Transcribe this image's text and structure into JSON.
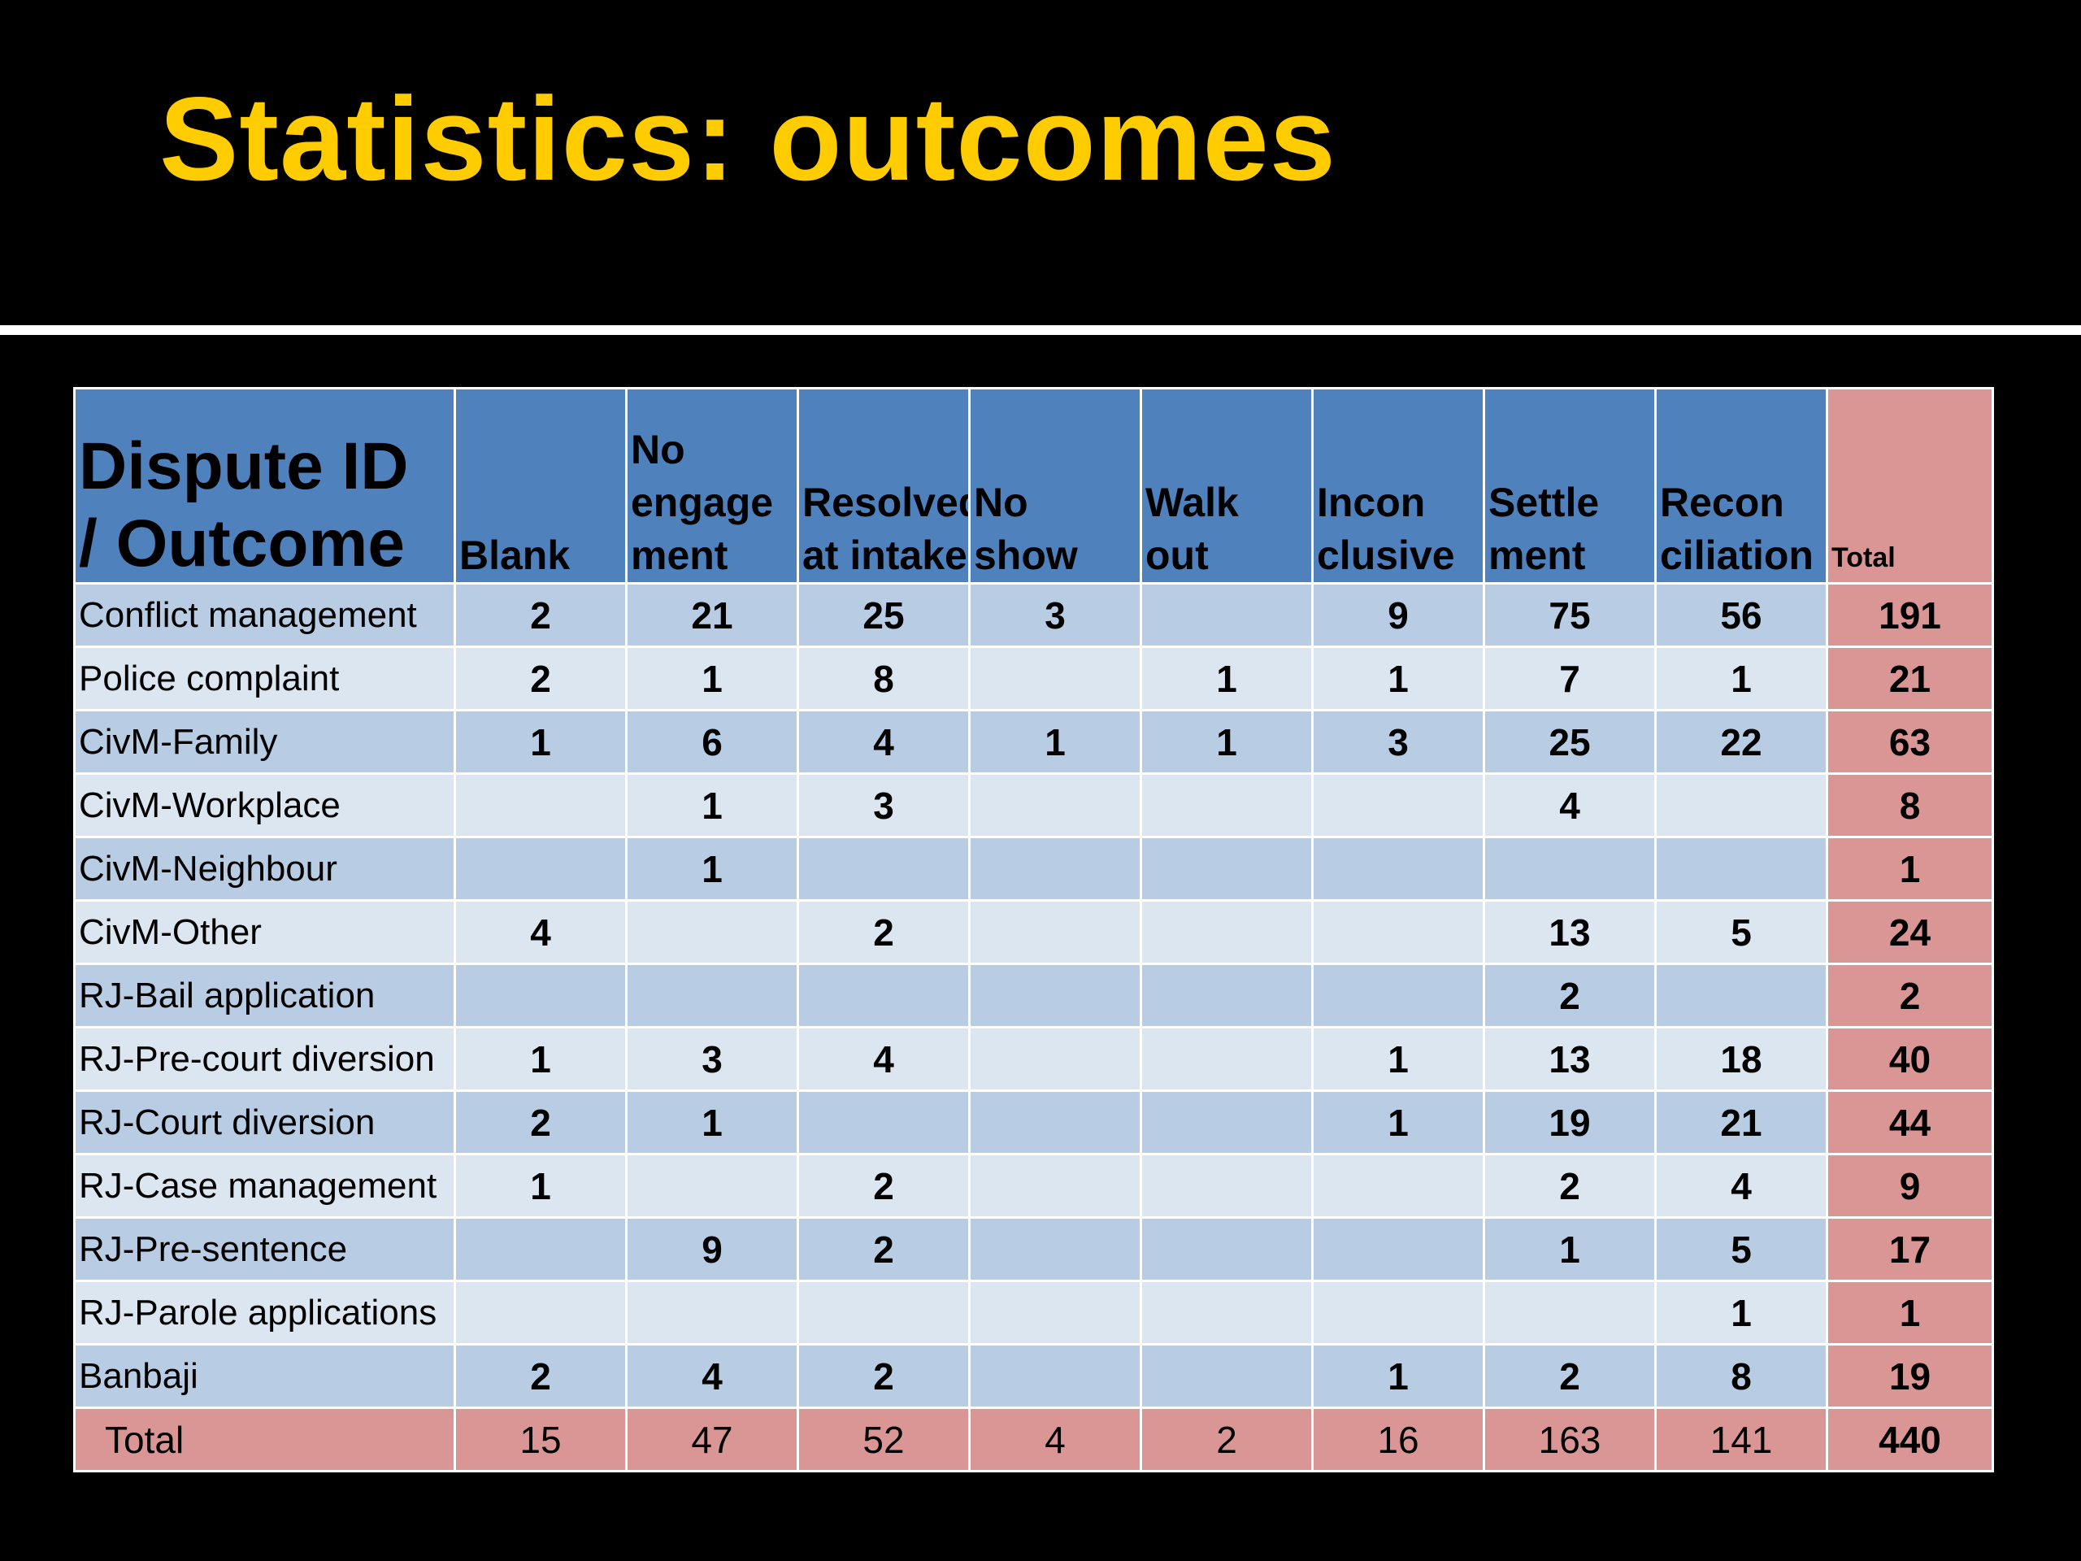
{
  "slide": {
    "title": "Statistics: outcomes"
  },
  "table": {
    "corner_header": [
      "Dispute ID",
      "/ Outcome"
    ],
    "columns": [
      [
        "Blank"
      ],
      [
        "No",
        "engage",
        "ment"
      ],
      [
        "Resolved",
        "at intake"
      ],
      [
        "No",
        "show"
      ],
      [
        "Walk",
        "out"
      ],
      [
        "Incon",
        "clusive"
      ],
      [
        "Settle",
        "ment"
      ],
      [
        "Recon",
        "ciliation"
      ]
    ],
    "total_header": "Total",
    "rows": [
      {
        "label": "Conflict management",
        "cells": [
          "2",
          "21",
          "25",
          "3",
          "",
          "9",
          "75",
          "56"
        ],
        "total": "191"
      },
      {
        "label": "Police complaint",
        "cells": [
          "2",
          "1",
          "8",
          "",
          "1",
          "1",
          "7",
          "1"
        ],
        "total": "21"
      },
      {
        "label": "CivM-Family",
        "cells": [
          "1",
          "6",
          "4",
          "1",
          "1",
          "3",
          "25",
          "22"
        ],
        "total": "63"
      },
      {
        "label": "CivM-Workplace",
        "cells": [
          "",
          "1",
          "3",
          "",
          "",
          "",
          "4",
          ""
        ],
        "total": "8"
      },
      {
        "label": "CivM-Neighbour",
        "cells": [
          "",
          "1",
          "",
          "",
          "",
          "",
          "",
          ""
        ],
        "total": "1"
      },
      {
        "label": "CivM-Other",
        "cells": [
          "4",
          "",
          "2",
          "",
          "",
          "",
          "13",
          "5"
        ],
        "total": "24"
      },
      {
        "label": "RJ-Bail application",
        "cells": [
          "",
          "",
          "",
          "",
          "",
          "",
          "2",
          ""
        ],
        "total": "2"
      },
      {
        "label": "RJ-Pre-court diversion",
        "cells": [
          "1",
          "3",
          "4",
          "",
          "",
          "1",
          "13",
          "18"
        ],
        "total": "40"
      },
      {
        "label": "RJ-Court diversion",
        "cells": [
          "2",
          "1",
          "",
          "",
          "",
          "1",
          "19",
          "21"
        ],
        "total": "44"
      },
      {
        "label": "RJ-Case management",
        "cells": [
          "1",
          "",
          "2",
          "",
          "",
          "",
          "2",
          "4"
        ],
        "total": "9"
      },
      {
        "label": "RJ-Pre-sentence",
        "cells": [
          "",
          "9",
          "2",
          "",
          "",
          "",
          "1",
          "5"
        ],
        "total": "17"
      },
      {
        "label": "RJ-Parole applications",
        "cells": [
          "",
          "",
          "",
          "",
          "",
          "",
          "",
          "1"
        ],
        "total": "1"
      },
      {
        "label": "Banbaji",
        "cells": [
          "2",
          "4",
          "2",
          "",
          "",
          "1",
          "2",
          "8"
        ],
        "total": "19"
      }
    ],
    "footer": {
      "label": "Total",
      "cells": [
        "15",
        "47",
        "52",
        "4",
        "2",
        "16",
        "163",
        "141"
      ],
      "total": "440"
    }
  },
  "colors": {
    "background": "#000000",
    "title": "#ffcc00",
    "header_blue": "#4f81bd",
    "row_dark": "#b8cce4",
    "row_light": "#dce6f1",
    "total_pink": "#d99694"
  }
}
